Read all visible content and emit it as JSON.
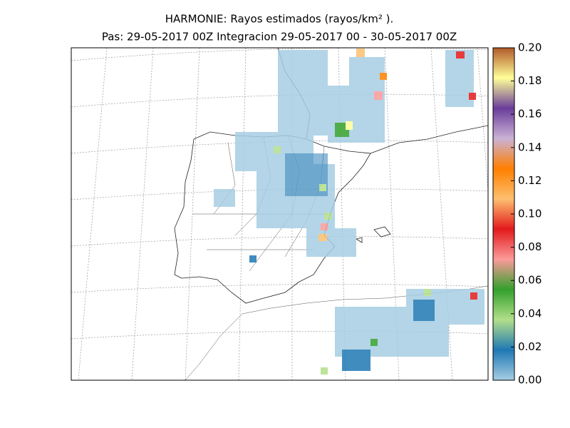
{
  "title": "HARMONIE: Rayos estimados  (rayos/km² ).",
  "subtitle": "Pas: 29-05-2017 00Z Integracion 29-05-2017 00 - 30-05-2017 00Z",
  "colorbar": {
    "clim": [
      0,
      0.2
    ],
    "colormap": [
      "#a6cee3",
      "#1f78b4",
      "#b2df8a",
      "#33a02c",
      "#fb9a99",
      "#e31a1c",
      "#fdbf6f",
      "#ff7f00",
      "#cab2d6",
      "#6a3d9a",
      "#ffff99",
      "#b15928"
    ],
    "ticks": [
      {
        "value": 0,
        "label": "0.00"
      },
      0.02,
      0.04,
      0.06,
      0.08,
      {
        "value": 0.1,
        "label": "0.10"
      },
      0.12,
      0.14,
      0.16,
      0.18,
      {
        "value": 0.2,
        "label": "0.20"
      }
    ]
  }
}
